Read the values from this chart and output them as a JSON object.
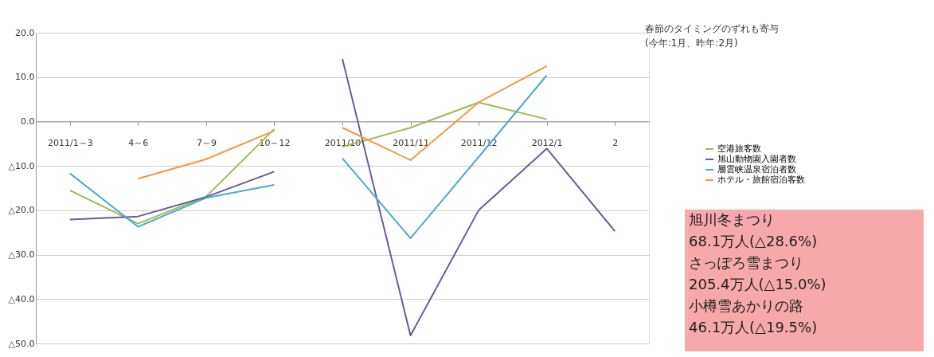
{
  "chart_data": {
    "type": "line",
    "categories": [
      "2011/1～3",
      "4～6",
      "7～9",
      "10～12",
      "2011/10",
      "2011/11",
      "2011/12",
      "2012/1",
      "2"
    ],
    "series": [
      {
        "name": "空港旅客数",
        "color": "#9bbb59",
        "values": [
          -15.5,
          -23.0,
          -16.9,
          -1.7,
          null,
          null,
          null,
          null,
          null
        ]
      },
      {
        "name": "旭山動物園入園者数",
        "color": "#6b5b95",
        "values": [
          -22.1,
          -21.4,
          -17.0,
          -11.3,
          null,
          null,
          null,
          null,
          null
        ]
      },
      {
        "name": "層雲峡温泉宿泊者数",
        "color": "#4bacc6",
        "values": [
          -11.7,
          -23.7,
          -17.2,
          -14.3,
          null,
          null,
          null,
          null,
          null
        ]
      },
      {
        "name": "ホテル・旅館宿泊客数",
        "color": "#f79646",
        "values": [
          null,
          -12.9,
          -8.5,
          -2.1,
          null,
          null,
          null,
          null,
          null
        ]
      },
      {
        "color": "#9bbb59",
        "values": [
          null,
          null,
          null,
          null,
          -5.7,
          -1.4,
          4.3,
          0.5,
          null
        ]
      },
      {
        "color": "#6b5b95",
        "values": [
          null,
          null,
          null,
          null,
          14.1,
          -48.2,
          -20.0,
          -6.1,
          -24.7
        ]
      },
      {
        "color": "#4bacc6",
        "values": [
          null,
          null,
          null,
          null,
          -8.3,
          -26.3,
          -8.0,
          10.4,
          null
        ]
      },
      {
        "color": "#f79646",
        "values": [
          null,
          null,
          null,
          null,
          -1.4,
          -8.7,
          4.3,
          12.5,
          null
        ]
      }
    ],
    "ylim": [
      -50,
      20
    ],
    "yticks": [
      {
        "value": -50,
        "label": "△50.0"
      },
      {
        "value": -40,
        "label": "△40.0"
      },
      {
        "value": -30,
        "label": "△30.0"
      },
      {
        "value": -20,
        "label": "△20.0"
      },
      {
        "value": -10,
        "label": "△10.0"
      },
      {
        "value": 0,
        "label": "0.0"
      },
      {
        "value": 10,
        "label": "10.0"
      },
      {
        "value": 20,
        "label": "20.0"
      }
    ],
    "grid": "y",
    "legend": "right",
    "marker": "none",
    "line_style": "solid",
    "annotations": [
      "春節のタイミングのずれも寄与\n(今年:1月、昨年:2月)",
      "旭川冬まつり\n68.1万人(△28.6%)\nさっぽろ雪まつり\n205.4万人(△15.0%)\n小樽雪あかりの路\n46.1万人(△19.5%)"
    ]
  }
}
